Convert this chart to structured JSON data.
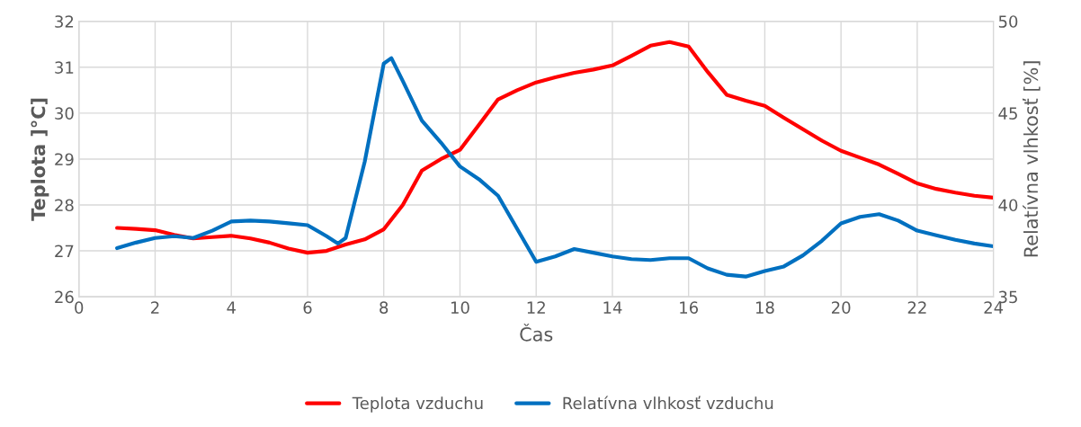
{
  "chart_data": {
    "type": "line",
    "xlabel": "Čas",
    "ylabel": "Teplota ]°C]",
    "y2label": "Relatívna vlhkosť [%]",
    "x": [
      1,
      1.5,
      2,
      2.5,
      3,
      3.5,
      4,
      4.5,
      5,
      5.5,
      6,
      6.5,
      7,
      7.5,
      8,
      8.5,
      9,
      9.5,
      10,
      10.5,
      11,
      11.5,
      12,
      12.5,
      13,
      13.5,
      14,
      14.5,
      15,
      15.5,
      16,
      16.5,
      17,
      17.5,
      18,
      18.5,
      19,
      19.5,
      20,
      20.5,
      21,
      21.5,
      22,
      22.5,
      23,
      23.5,
      24
    ],
    "series": [
      {
        "name": "Teplota vzduchu",
        "color": "#ff0000",
        "values": [
          27.5,
          27.48,
          27.45,
          27.35,
          27.27,
          27.3,
          27.33,
          27.27,
          27.18,
          27.05,
          26.96,
          27.0,
          27.14,
          27.25,
          27.47,
          28.0,
          28.75,
          29.0,
          29.2,
          29.75,
          30.3,
          30.5,
          30.67,
          30.78,
          30.88,
          30.95,
          31.04,
          31.25,
          31.47,
          31.55,
          31.45,
          30.9,
          30.4,
          30.27,
          30.16,
          29.9,
          29.65,
          29.4,
          29.18,
          29.03,
          28.88,
          28.68,
          28.47,
          28.35,
          28.27,
          28.2,
          28.16
        ]
      },
      {
        "name": "Relatívna vlhkosť vzduchu",
        "color": "#0070c0",
        "axis": "y2",
        "x": [
          1,
          1.5,
          2,
          2.5,
          3,
          3.5,
          4,
          4.5,
          5,
          5.5,
          6,
          6.5,
          6.8,
          7,
          7.5,
          8,
          8.2,
          8.5,
          9,
          9.5,
          10,
          10.5,
          11,
          11.5,
          12,
          12.5,
          13,
          13.5,
          14,
          14.5,
          15,
          15.5,
          16,
          16.5,
          17,
          17.5,
          18,
          18.5,
          19,
          19.5,
          20,
          20.5,
          21,
          21.5,
          22,
          22.5,
          23,
          23.5,
          24
        ],
        "values": [
          37.65,
          37.95,
          38.2,
          38.3,
          38.2,
          38.6,
          39.1,
          39.15,
          39.1,
          39.0,
          38.9,
          38.3,
          37.9,
          38.2,
          42.35,
          47.7,
          48.0,
          46.75,
          44.6,
          43.4,
          42.1,
          41.4,
          40.5,
          38.7,
          36.9,
          37.2,
          37.6,
          37.4,
          37.2,
          37.05,
          37.0,
          37.1,
          37.1,
          36.55,
          36.2,
          36.1,
          36.4,
          36.65,
          37.25,
          38.05,
          39.0,
          39.35,
          39.5,
          39.15,
          38.6,
          38.35,
          38.1,
          37.9,
          37.75
        ]
      }
    ],
    "xlim": [
      0,
      24
    ],
    "xticks": [
      0,
      2,
      4,
      6,
      8,
      10,
      12,
      14,
      16,
      18,
      20,
      22,
      24
    ],
    "ylim": [
      26,
      32
    ],
    "yticks": [
      26,
      27,
      28,
      29,
      30,
      31,
      32
    ],
    "y2lim": [
      35,
      50
    ],
    "y2ticks": [
      35,
      40,
      45,
      50
    ],
    "grid": true,
    "legend": "bottom",
    "marker": "none",
    "line_style": "solid"
  }
}
